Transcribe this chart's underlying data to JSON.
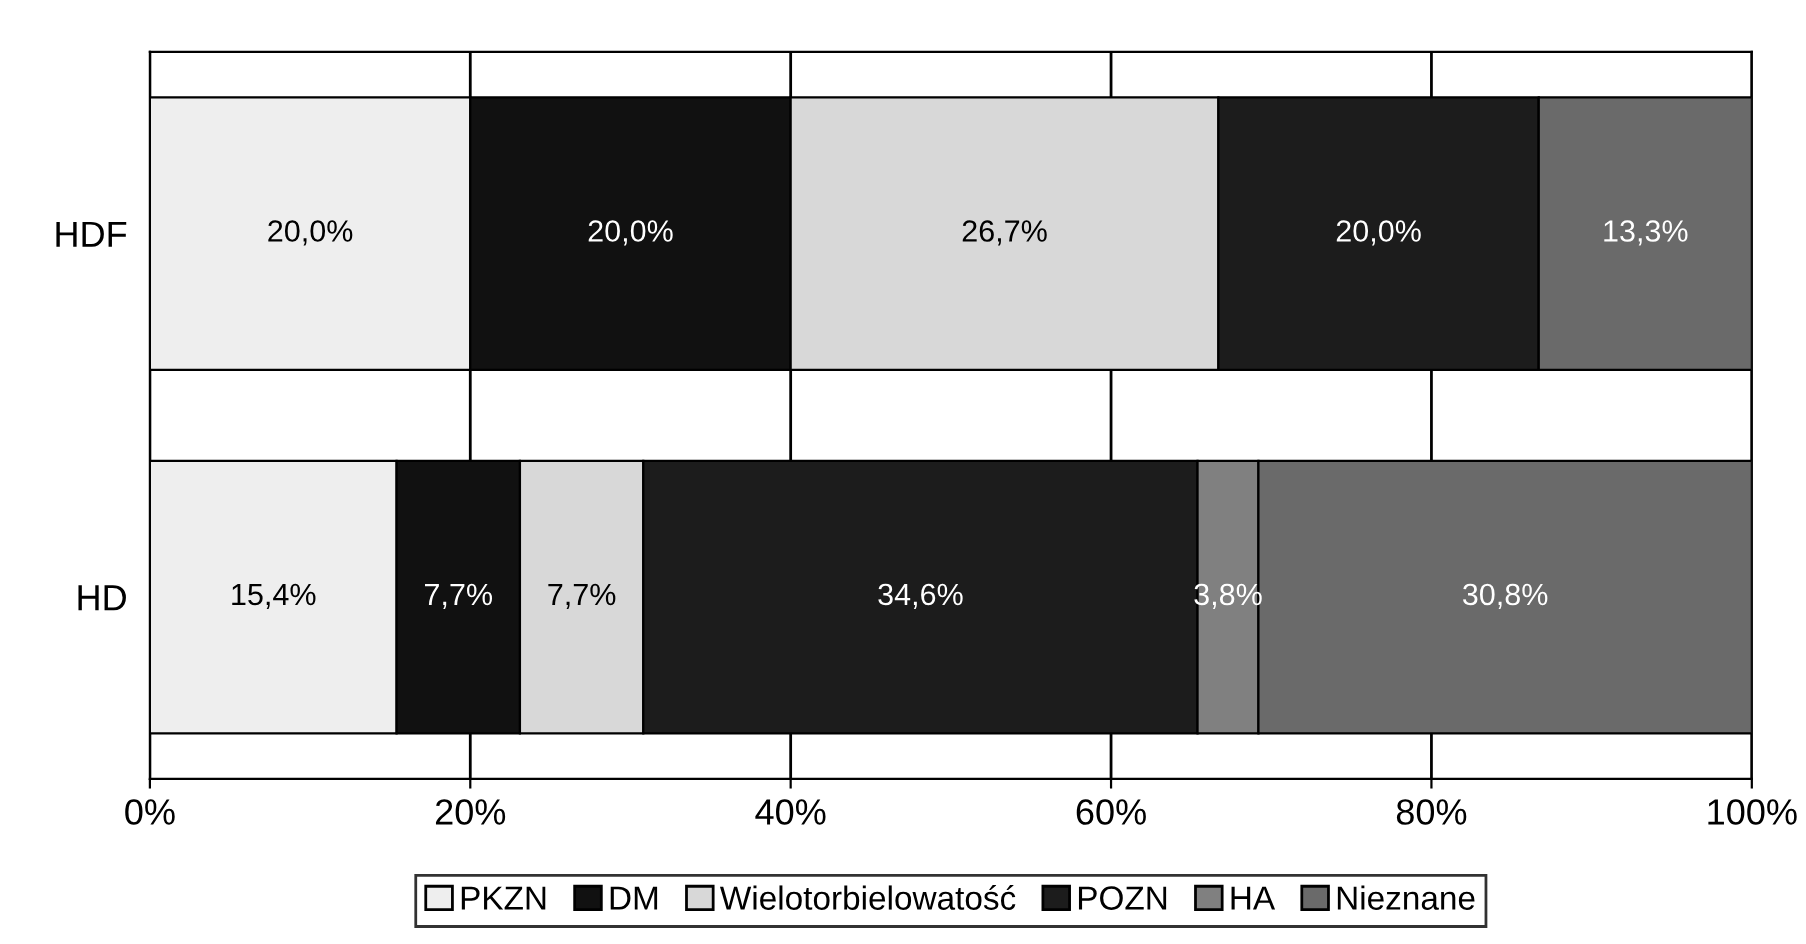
{
  "chart_data": {
    "type": "bar",
    "orientation": "horizontal",
    "stacked": true,
    "categories": [
      "HDF",
      "HD"
    ],
    "series": [
      {
        "name": "PKZN",
        "color": "#eeeeee",
        "values": [
          20.0,
          15.4
        ],
        "value_labels": [
          "20,0%",
          "15,4%"
        ]
      },
      {
        "name": "DM",
        "color": "#111111",
        "values": [
          20.0,
          7.7
        ],
        "value_labels": [
          "20,0%",
          "7,7%"
        ]
      },
      {
        "name": "Wielotorbielowatość",
        "color": "#d8d8d8",
        "values": [
          26.7,
          7.7
        ],
        "value_labels": [
          "26,7%",
          "7,7%"
        ]
      },
      {
        "name": "POZN",
        "color": "#1c1c1c",
        "values": [
          20.0,
          34.6
        ],
        "value_labels": [
          "20,0%",
          "34,6%"
        ]
      },
      {
        "name": "HA",
        "color": "#808080",
        "values": [
          0,
          3.8
        ],
        "value_labels": [
          null,
          "3,8%"
        ]
      },
      {
        "name": "Nieznane",
        "color": "#6a6a6a",
        "values": [
          13.3,
          30.8
        ],
        "value_labels": [
          "13,3%",
          "30,8%"
        ]
      }
    ],
    "xlim": [
      0,
      100
    ],
    "xticks": [
      {
        "value": 0,
        "label": "0%"
      },
      {
        "value": 20,
        "label": "20%"
      },
      {
        "value": 40,
        "label": "40%"
      },
      {
        "value": 60,
        "label": "60%"
      },
      {
        "value": 80,
        "label": "80%"
      },
      {
        "value": 100,
        "label": "100%"
      }
    ],
    "grid": "x",
    "legend": "bottom"
  }
}
